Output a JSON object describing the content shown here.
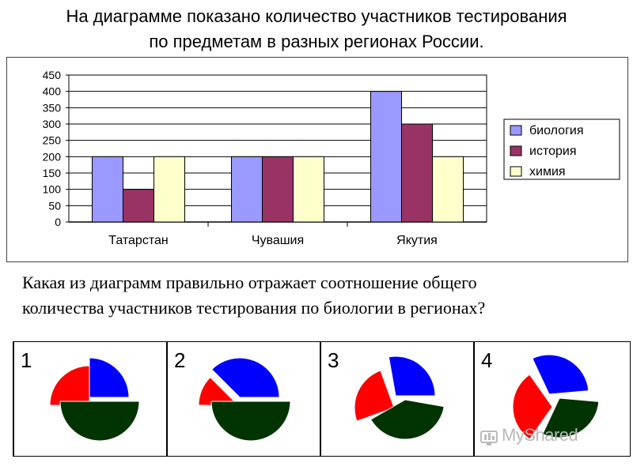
{
  "heading": {
    "line1": "На диаграмме показано количество участников тестирования",
    "line2": "по предметам в разных регионах России."
  },
  "chart_data": {
    "type": "bar",
    "categories": [
      "Татарстан",
      "Чувашия",
      "Якутия"
    ],
    "series": [
      {
        "name": "биология",
        "values": [
          200,
          200,
          400
        ],
        "color": "#9999FF"
      },
      {
        "name": "история",
        "values": [
          100,
          200,
          300
        ],
        "color": "#993366"
      },
      {
        "name": "химия",
        "values": [
          200,
          200,
          200
        ],
        "color": "#FFFFCC"
      }
    ],
    "yticks": [
      0,
      50,
      100,
      150,
      200,
      250,
      300,
      350,
      400,
      450
    ],
    "ylim": [
      0,
      450
    ],
    "grid": true,
    "legend": "right"
  },
  "question": {
    "line1": "Какая из диаграмм правильно отражает соотношение общего",
    "line2": "количества участников  тестирования по биологии в регионах?"
  },
  "options": [
    {
      "label": "1",
      "segments": [
        {
          "color": "#0000FF",
          "start": 270,
          "end": 360
        },
        {
          "color": "#FF0000",
          "start": 180,
          "end": 270
        },
        {
          "color": "#003300",
          "start": 0,
          "end": 180
        }
      ]
    },
    {
      "label": "2",
      "segments": [
        {
          "color": "#0000FF",
          "start": 225,
          "end": 360
        },
        {
          "color": "#FF0000",
          "start": 180,
          "end": 225
        },
        {
          "color": "#003300",
          "start": 0,
          "end": 180
        }
      ]
    },
    {
      "label": "3",
      "segments": [
        {
          "color": "#0000FF",
          "start": 260,
          "end": 360
        },
        {
          "color": "#FF0000",
          "start": 160,
          "end": 250
        },
        {
          "color": "#003300",
          "start": 10,
          "end": 150
        }
      ]
    },
    {
      "label": "4",
      "segments": [
        {
          "color": "#0000FF",
          "start": 245,
          "end": 355
        },
        {
          "color": "#FF0000",
          "start": 125,
          "end": 235
        },
        {
          "color": "#003300",
          "start": 5,
          "end": 115
        }
      ]
    }
  ],
  "watermark": "MyShared"
}
